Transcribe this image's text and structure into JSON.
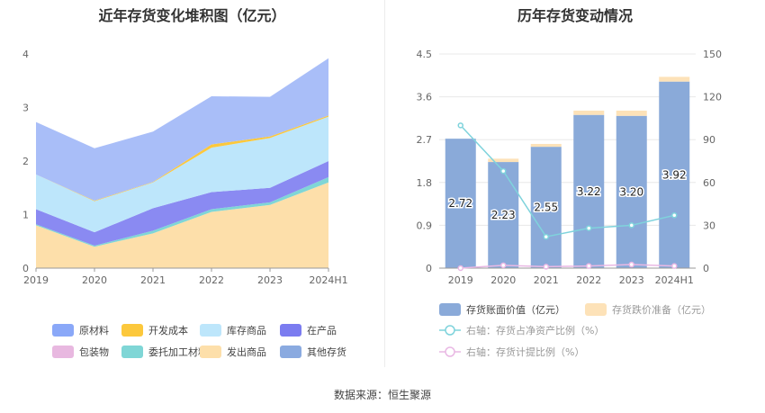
{
  "source_prefix": "数据来源：",
  "source_name": "恒生聚源",
  "chart_data": [
    {
      "type": "area",
      "stacked": true,
      "title": "近年存货变化堆积图（亿元）",
      "categories": [
        "2019",
        "2020",
        "2021",
        "2022",
        "2023",
        "2024H1"
      ],
      "ylim": [
        0,
        4
      ],
      "yticks": [
        "0",
        "1",
        "2",
        "3",
        "4"
      ],
      "grid": false,
      "legend_position": "bottom",
      "series": [
        {
          "name": "发出商品",
          "color": "#fddfaa",
          "values": [
            0.8,
            0.4,
            0.65,
            1.05,
            1.18,
            1.6
          ]
        },
        {
          "name": "委托加工材料",
          "color": "#7fd6d6",
          "values": [
            0.02,
            0.02,
            0.05,
            0.05,
            0.05,
            0.1
          ]
        },
        {
          "name": "包装物",
          "color": "#e8b8e0",
          "values": [
            0.0,
            0.0,
            0.0,
            0.0,
            0.0,
            0.0
          ]
        },
        {
          "name": "在产品",
          "color": "#8a8af2",
          "values": [
            0.28,
            0.25,
            0.42,
            0.32,
            0.27,
            0.3
          ]
        },
        {
          "name": "库存商品",
          "color": "#bde6fb",
          "values": [
            0.65,
            0.58,
            0.48,
            0.83,
            0.93,
            0.83
          ]
        },
        {
          "name": "开发成本",
          "color": "#fcc83c",
          "values": [
            0.0,
            0.01,
            0.01,
            0.06,
            0.03,
            0.02
          ]
        },
        {
          "name": "原材料",
          "color": "#a9bef8",
          "values": [
            0.98,
            0.98,
            0.94,
            0.9,
            0.74,
            1.07
          ]
        },
        {
          "name": "其他存货",
          "color": "#8aaae0",
          "values": [
            0.0,
            0.0,
            0.0,
            0.0,
            0.0,
            0.0
          ]
        }
      ],
      "legend_order": [
        "原材料",
        "开发成本",
        "库存商品",
        "在产品",
        "包装物",
        "委托加工材料",
        "发出商品",
        "其他存货"
      ],
      "legend_colors": {
        "原材料": "#8aa8f8",
        "开发成本": "#fcc83c",
        "库存商品": "#bde6fb",
        "在产品": "#7b7cf0",
        "包装物": "#e8b8e0",
        "委托加工材料": "#7fd6d6",
        "发出商品": "#fddfaa",
        "其他存货": "#8aaae0"
      }
    },
    {
      "type": "bar",
      "stacked": true,
      "title": "历年存货变动情况",
      "categories": [
        "2019",
        "2020",
        "2021",
        "2022",
        "2023",
        "2024H1"
      ],
      "ylim": [
        0,
        4.5
      ],
      "yticks": [
        "0",
        "0.9",
        "1.8",
        "2.7",
        "3.6",
        "4.5"
      ],
      "y2lim": [
        0,
        150
      ],
      "y2ticks": [
        "0",
        "30",
        "60",
        "90",
        "120",
        "150"
      ],
      "grid": true,
      "legend_position": "bottom",
      "series": [
        {
          "name": "存货账面价值（亿元）",
          "axis": "left",
          "color": "#8aaad9",
          "values": [
            2.72,
            2.23,
            2.55,
            3.22,
            3.2,
            3.92
          ],
          "labels": [
            "2.72",
            "2.23",
            "2.55",
            "3.22",
            "3.20",
            "3.92"
          ]
        },
        {
          "name": "存货跌价准备（亿元）",
          "axis": "left",
          "color": "#fde2b8",
          "values": [
            0.0,
            0.07,
            0.06,
            0.09,
            0.11,
            0.1
          ]
        },
        {
          "name": "右轴：存货占净资产比例（%）",
          "axis": "right",
          "type": "line",
          "color": "#7fd3dc",
          "values": [
            100,
            68,
            22,
            28,
            30,
            37
          ]
        },
        {
          "name": "右轴：存货计提比例（%）",
          "axis": "right",
          "type": "line",
          "color": "#e9b8e4",
          "values": [
            0,
            2,
            1,
            1.5,
            2.5,
            1.5
          ]
        }
      ]
    }
  ]
}
